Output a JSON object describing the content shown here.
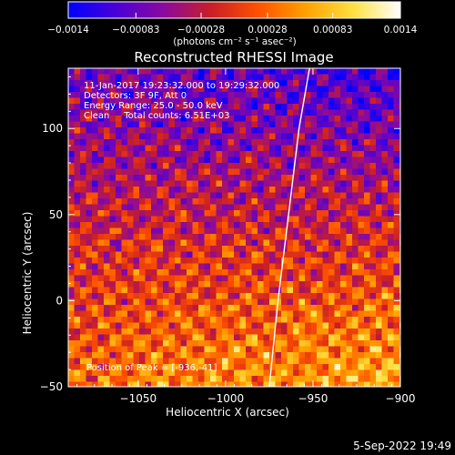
{
  "chart_data": {
    "type": "heatmap",
    "title": "Reconstructed RHESSI Image",
    "xlabel": "Heliocentric X (arcsec)",
    "ylabel": "Heliocentric Y (arcsec)",
    "xlim": [
      -1090,
      -900
    ],
    "ylim": [
      -50,
      135
    ],
    "x_ticks": [
      -1050,
      -1000,
      -950,
      -900
    ],
    "x_tick_labels": [
      "−1050",
      "−1000",
      "−950",
      "−900"
    ],
    "y_ticks": [
      -50,
      0,
      50,
      100
    ],
    "y_tick_labels": [
      "−50",
      "0",
      "50",
      "100"
    ],
    "info_lines": [
      "11-Jan-2017 19:23:32.000 to 19:29:32.000",
      "Detectors: 3F 9F, Att 0",
      "Energy Range: 25.0 - 50.0 keV",
      "Clean     Total counts: 6.51E+03"
    ],
    "peak_label": "Position of Peak = [-936,-41]",
    "peak_position": [
      -936,
      -41
    ],
    "limb_curve": {
      "x": [
        -952,
        -958,
        -964,
        -970,
        -975
      ],
      "y": [
        135,
        100,
        50,
        0,
        -50
      ],
      "color": "#ffffff"
    },
    "colorbar": {
      "range": [
        -0.0014,
        0.0014
      ],
      "tick_values": [
        -0.0014,
        -0.00083,
        -0.00028,
        0.00028,
        0.00083,
        0.0014
      ],
      "tick_labels": [
        "−0.0014",
        "−0.00083",
        "−0.00028",
        "0.00028",
        "0.00083",
        "0.0014"
      ],
      "units_label": "(photons cm⁻² s⁻¹ asec⁻²)",
      "colormap_stops": [
        "#0000ff",
        "#4a00d8",
        "#8a0aa0",
        "#c81e28",
        "#ff5000",
        "#ffa000",
        "#ffe040",
        "#ffffff"
      ]
    },
    "grid": false,
    "legend": "none"
  },
  "footer": {
    "date": "5-Sep-2022 19:49"
  }
}
